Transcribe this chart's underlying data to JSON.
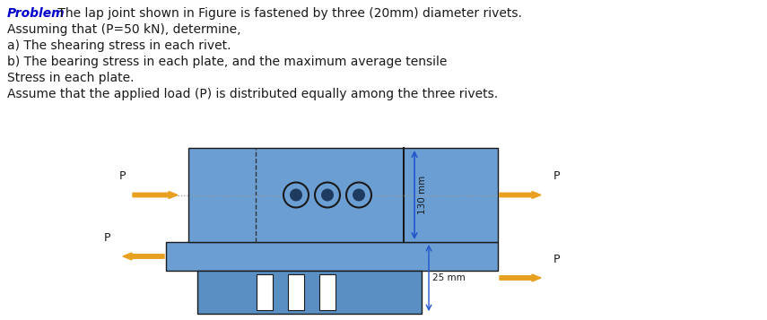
{
  "title_bold": "Problem",
  "title_rest": " The lap joint shown in Figure is fastened by three (20mm) diameter rivets.",
  "lines": [
    "Assuming that (P=50 kN), determine,",
    "a) The shearing stress in each rivet.",
    "b) The bearing stress in each plate, and the maximum average tensile",
    "Stress in each plate.",
    "Assume that the applied load (P) is distributed equally among the three rivets."
  ],
  "plate_color": "#6b9fd4",
  "plate_color2": "#5a8fc4",
  "rivet_edge": "#1a1a1a",
  "arrow_color": "#e8a020",
  "dim_color": "#2255cc",
  "white_color": "#ffffff",
  "bg_color": "#ffffff",
  "label_130": "130 mm",
  "label_25": "25 mm",
  "text_color": "#1a1a1a",
  "blue_title": "#0000cc"
}
